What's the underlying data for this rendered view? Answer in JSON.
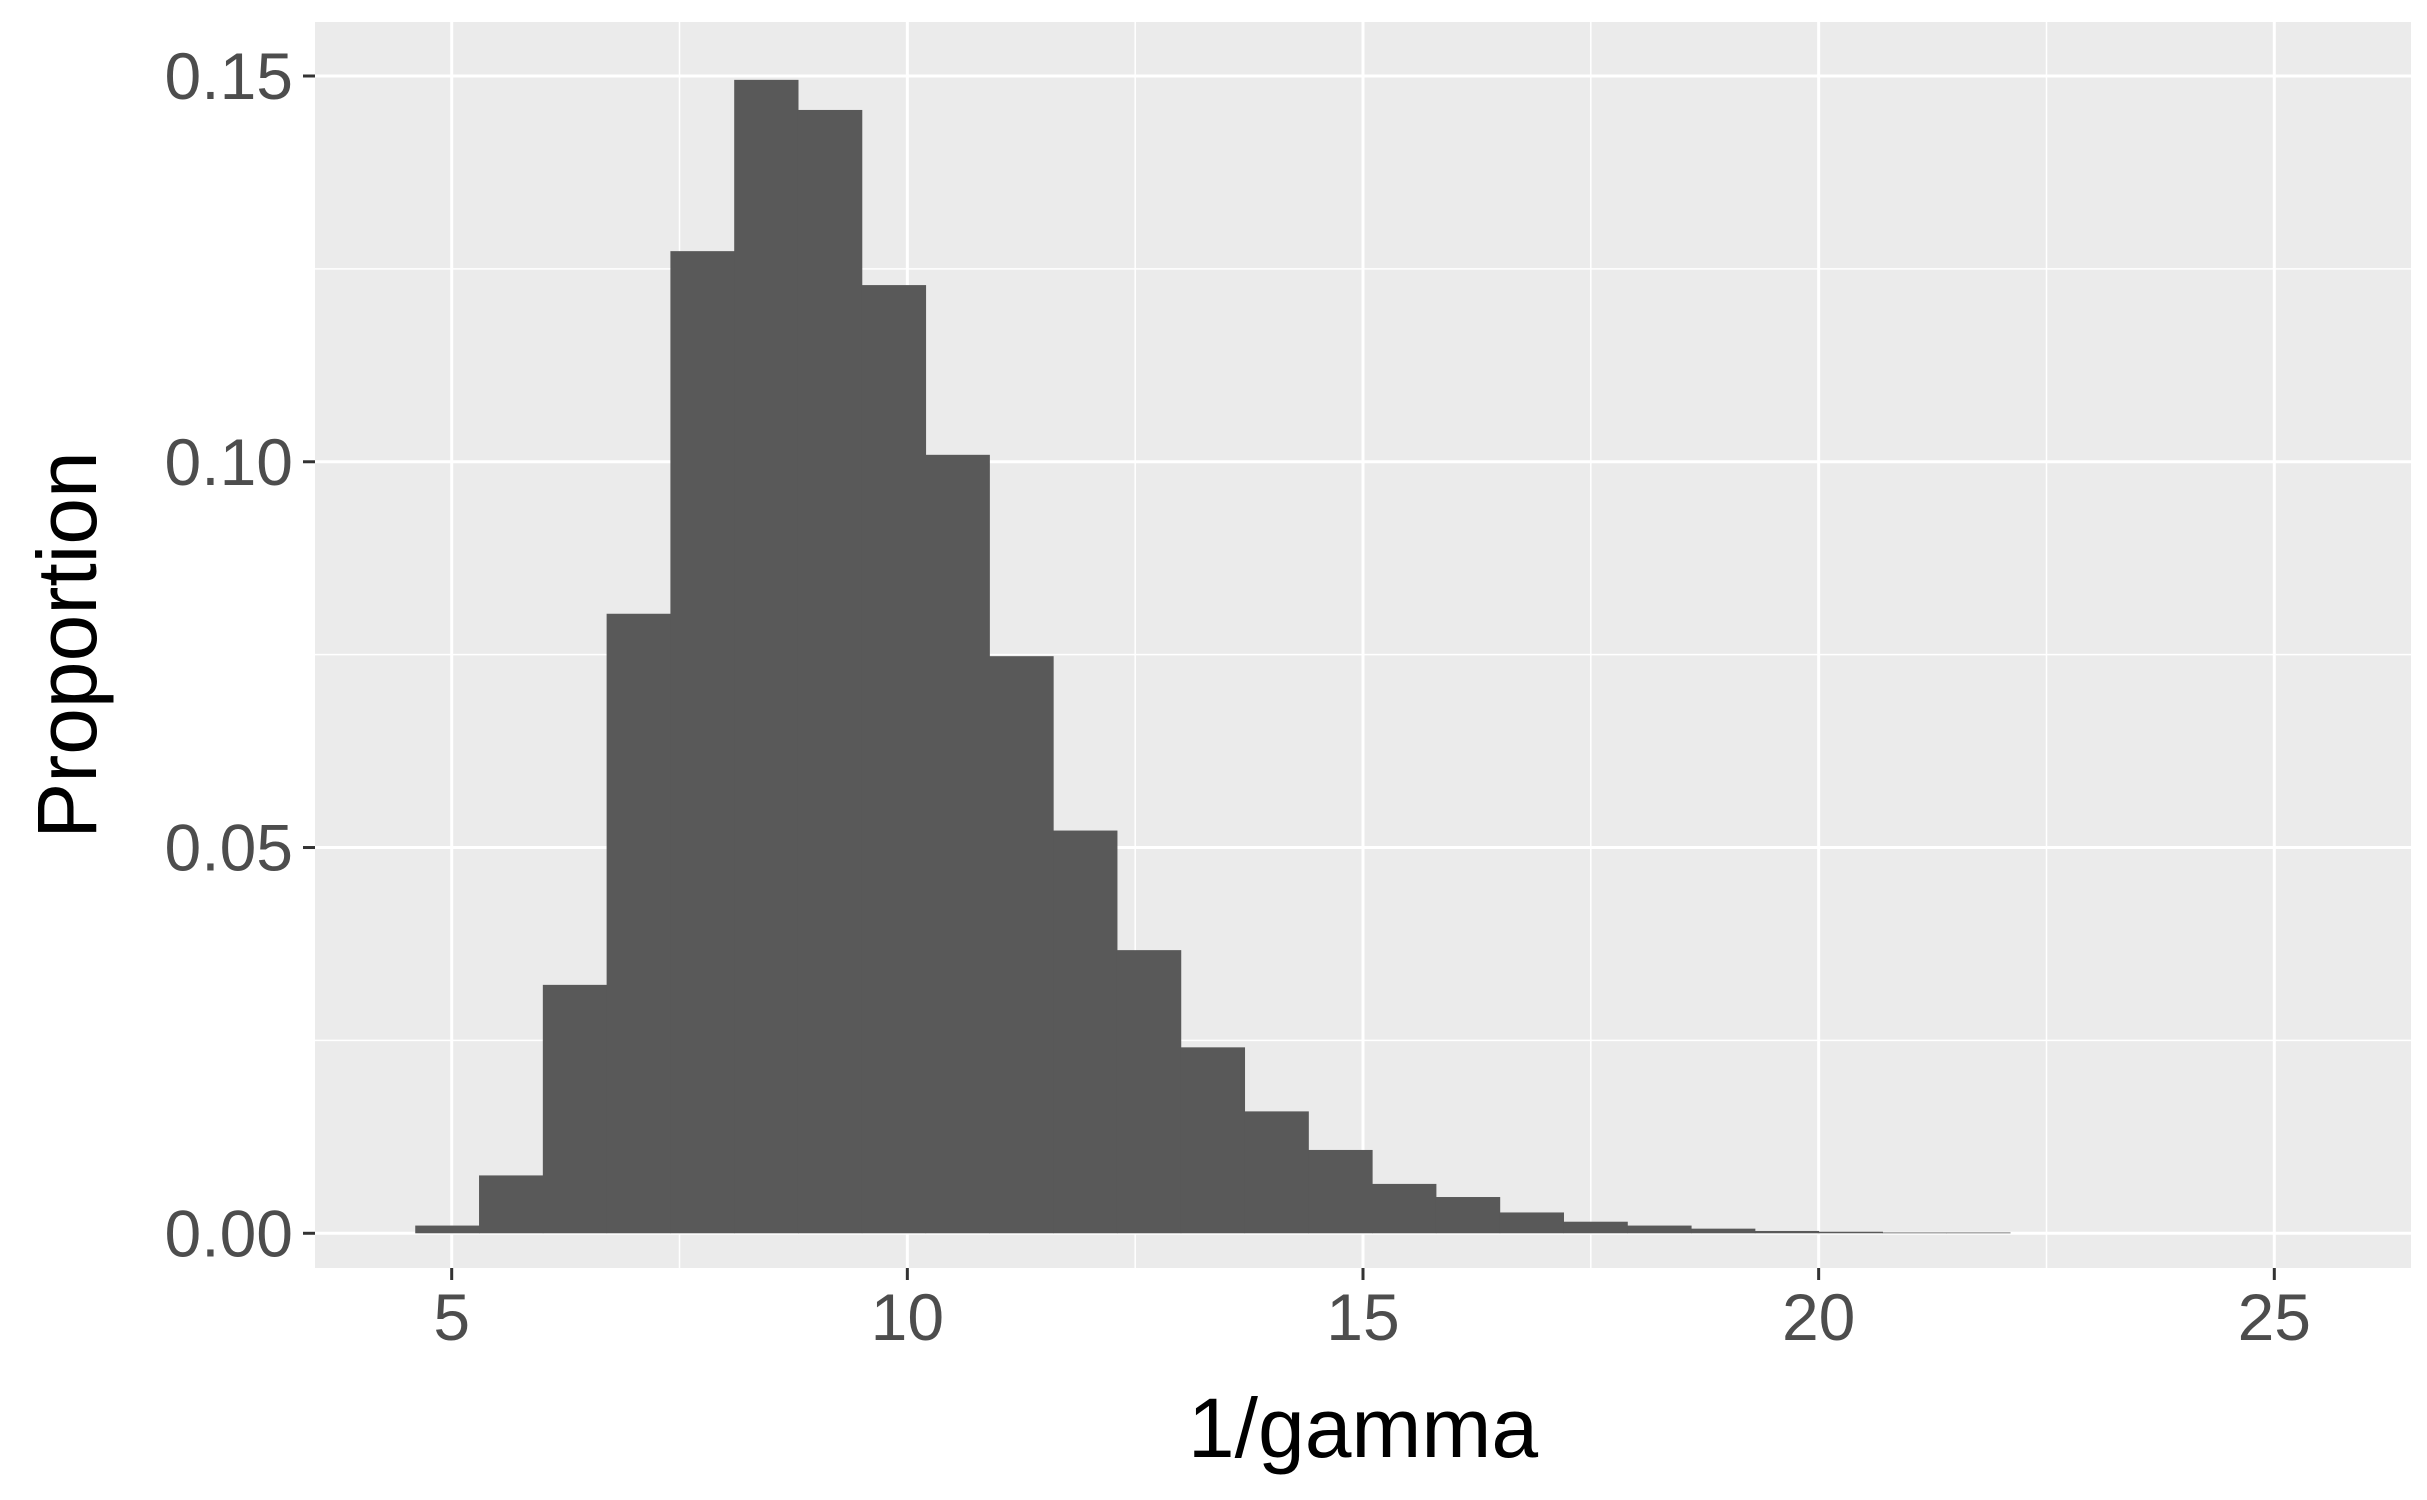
{
  "chart_data": {
    "type": "bar",
    "xlabel": "1/gamma",
    "ylabel": "Proportion",
    "xlim": [
      3.5,
      26.5
    ],
    "ylim": [
      -0.0045,
      0.157
    ],
    "x_ticks": [
      5,
      10,
      15,
      20,
      25
    ],
    "x_tick_labels": [
      "5",
      "10",
      "15",
      "20",
      "25"
    ],
    "x_minor_ticks": [
      7.5,
      12.5,
      17.5,
      22.5
    ],
    "y_ticks": [
      0.0,
      0.05,
      0.1,
      0.15
    ],
    "y_tick_labels": [
      "0.00",
      "0.05",
      "0.10",
      "0.15"
    ],
    "y_minor_ticks": [
      0.025,
      0.075,
      0.125
    ],
    "grid": true,
    "bin_width": 0.7,
    "bins": [
      {
        "x0": 4.6,
        "x1": 5.3,
        "value": 0.001
      },
      {
        "x0": 5.3,
        "x1": 6.0,
        "value": 0.0075
      },
      {
        "x0": 6.0,
        "x1": 6.7,
        "value": 0.0322
      },
      {
        "x0": 6.7,
        "x1": 7.4,
        "value": 0.0803
      },
      {
        "x0": 7.4,
        "x1": 8.1,
        "value": 0.1273
      },
      {
        "x0": 8.1,
        "x1": 8.8,
        "value": 0.1495
      },
      {
        "x0": 8.8,
        "x1": 9.5,
        "value": 0.1456
      },
      {
        "x0": 9.5,
        "x1": 10.2,
        "value": 0.1229
      },
      {
        "x0": 10.2,
        "x1": 10.9,
        "value": 0.1009
      },
      {
        "x0": 10.9,
        "x1": 11.6,
        "value": 0.0748
      },
      {
        "x0": 11.6,
        "x1": 12.3,
        "value": 0.0522
      },
      {
        "x0": 12.3,
        "x1": 13.0,
        "value": 0.0367
      },
      {
        "x0": 13.0,
        "x1": 13.7,
        "value": 0.0241
      },
      {
        "x0": 13.7,
        "x1": 14.4,
        "value": 0.0158
      },
      {
        "x0": 14.4,
        "x1": 15.1,
        "value": 0.0108
      },
      {
        "x0": 15.1,
        "x1": 15.8,
        "value": 0.0064
      },
      {
        "x0": 15.8,
        "x1": 16.5,
        "value": 0.0047
      },
      {
        "x0": 16.5,
        "x1": 17.2,
        "value": 0.0027
      },
      {
        "x0": 17.2,
        "x1": 17.9,
        "value": 0.0015
      },
      {
        "x0": 17.9,
        "x1": 18.6,
        "value": 0.001
      },
      {
        "x0": 18.6,
        "x1": 19.3,
        "value": 0.0006
      },
      {
        "x0": 19.3,
        "x1": 20.0,
        "value": 0.0003
      },
      {
        "x0": 20.0,
        "x1": 20.7,
        "value": 0.0002
      },
      {
        "x0": 20.7,
        "x1": 21.4,
        "value": 0.0001
      },
      {
        "x0": 21.4,
        "x1": 22.1,
        "value": 0.0001
      }
    ],
    "colors": {
      "panel_background": "#ebebeb",
      "grid_line": "#ffffff",
      "bar_fill": "#595959",
      "tick_mark": "#333333",
      "tick_label": "#4d4d4d",
      "axis_title": "#000000"
    }
  }
}
